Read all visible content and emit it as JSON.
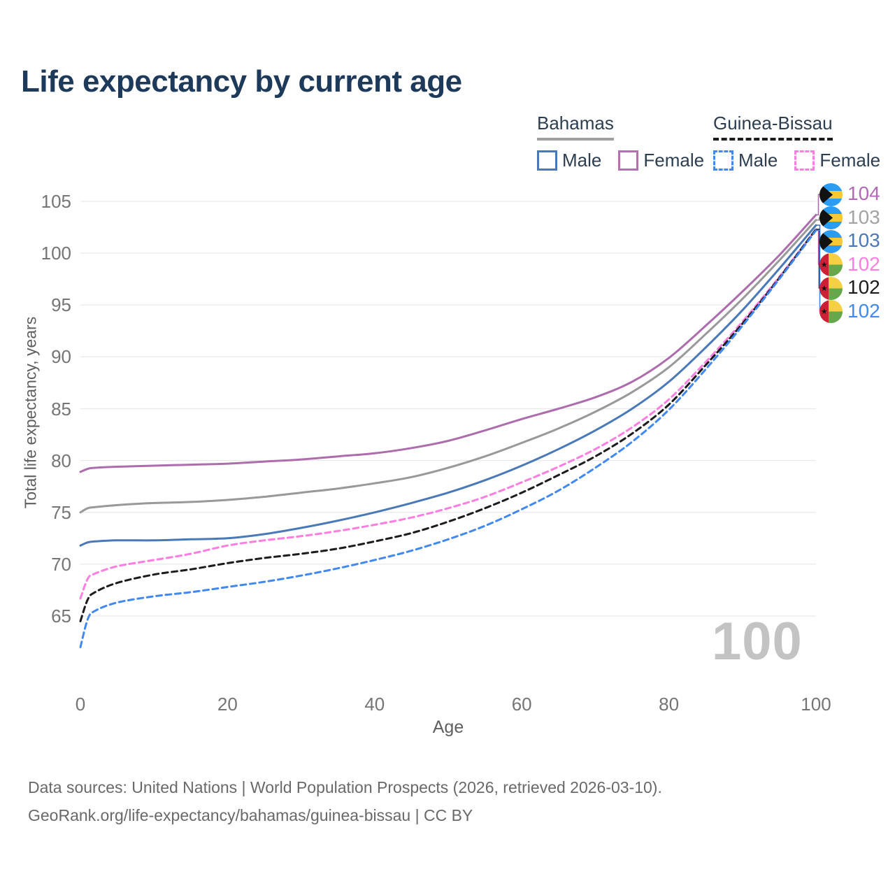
{
  "title": "Life expectancy by current age",
  "watermark": "100",
  "legend": {
    "groups": [
      {
        "country": "Bahamas",
        "underline_style": "solid",
        "underline_color": "#a0a0a0",
        "items": [
          {
            "label": "Male",
            "color": "#4a79b8",
            "dashed": false
          },
          {
            "label": "Female",
            "color": "#b272b2",
            "dashed": false
          }
        ]
      },
      {
        "country": "Guinea-Bissau",
        "underline_style": "dashed",
        "underline_color": "#1c1c1c",
        "items": [
          {
            "label": "Male",
            "color": "#4189f0",
            "dashed": true
          },
          {
            "label": "Female",
            "color": "#fc7ee0",
            "dashed": true
          }
        ]
      }
    ]
  },
  "y_axis": {
    "title": "Total life expectancy, years",
    "ticks": [
      105,
      100,
      95,
      90,
      85,
      80,
      75,
      70,
      65
    ]
  },
  "x_axis": {
    "title": "Age",
    "ticks": [
      0,
      20,
      40,
      60,
      80,
      100
    ]
  },
  "end_labels": [
    {
      "value": "104",
      "color": "#b16ab6",
      "flag": "bahamas"
    },
    {
      "value": "103",
      "color": "#a3a3a3",
      "flag": "bahamas"
    },
    {
      "value": "103",
      "color": "#4a79b8",
      "flag": "bahamas"
    },
    {
      "value": "102",
      "color": "#fc7ee0",
      "flag": "guinea-bissau"
    },
    {
      "value": "102",
      "color": "#1c1c1c",
      "flag": "guinea-bissau"
    },
    {
      "value": "102",
      "color": "#4189f0",
      "flag": "guinea-bissau"
    }
  ],
  "footer": {
    "line1": "Data sources: United Nations | World Population Prospects (2026, retrieved 2026-03-10).",
    "line2": "GeoRank.org/life-expectancy/bahamas/guinea-bissau | CC BY"
  },
  "chart_data": {
    "type": "line",
    "title": "Life expectancy by current age",
    "xlabel": "Age",
    "ylabel": "Total life expectancy, years",
    "xlim": [
      0,
      100
    ],
    "ylim": [
      61,
      106
    ],
    "grid": "horizontal",
    "legend_position": "top-right",
    "x": [
      0,
      1,
      2,
      5,
      10,
      15,
      20,
      25,
      30,
      35,
      40,
      45,
      50,
      55,
      60,
      65,
      70,
      75,
      80,
      85,
      90,
      95,
      100
    ],
    "series": [
      {
        "name": "Bahamas Female",
        "color": "#ad6dad",
        "dashed": false,
        "values": [
          78.9,
          79.2,
          79.3,
          79.4,
          79.5,
          79.6,
          79.7,
          79.9,
          80.1,
          80.4,
          80.7,
          81.2,
          81.9,
          82.9,
          84.0,
          85.0,
          86.1,
          87.6,
          89.9,
          93.0,
          96.3,
          99.8,
          103.7
        ]
      },
      {
        "name": "Bahamas Both sexes",
        "color": "#999999",
        "dashed": false,
        "values": [
          75.0,
          75.4,
          75.5,
          75.7,
          75.9,
          76.0,
          76.2,
          76.5,
          76.9,
          77.3,
          77.8,
          78.4,
          79.3,
          80.4,
          81.7,
          83.1,
          84.7,
          86.6,
          89.0,
          92.2,
          95.6,
          99.3,
          103.2
        ]
      },
      {
        "name": "Bahamas Male",
        "color": "#4a79b8",
        "dashed": false,
        "values": [
          71.8,
          72.1,
          72.2,
          72.3,
          72.3,
          72.4,
          72.5,
          72.9,
          73.5,
          74.2,
          75.0,
          75.9,
          76.9,
          78.1,
          79.5,
          81.1,
          82.9,
          85.0,
          87.6,
          90.9,
          94.5,
          98.5,
          102.7
        ]
      },
      {
        "name": "Guinea-Bissau Female",
        "color": "#fc7ee0",
        "dashed": true,
        "values": [
          66.7,
          68.6,
          69.1,
          69.8,
          70.4,
          71.0,
          71.8,
          72.3,
          72.7,
          73.2,
          73.8,
          74.5,
          75.4,
          76.5,
          77.9,
          79.4,
          81.1,
          83.2,
          85.9,
          89.5,
          93.4,
          97.7,
          102.3
        ]
      },
      {
        "name": "Guinea-Bissau Both sexes",
        "color": "#1c1c1c",
        "dashed": true,
        "values": [
          64.5,
          66.6,
          67.3,
          68.2,
          69.0,
          69.5,
          70.1,
          70.6,
          71.0,
          71.5,
          72.2,
          73.0,
          74.1,
          75.4,
          76.9,
          78.6,
          80.4,
          82.6,
          85.4,
          89.2,
          93.2,
          97.6,
          102.3
        ]
      },
      {
        "name": "Guinea-Bissau Male",
        "color": "#4189f0",
        "dashed": true,
        "values": [
          62.0,
          64.7,
          65.5,
          66.3,
          66.9,
          67.3,
          67.8,
          68.3,
          68.9,
          69.6,
          70.4,
          71.3,
          72.4,
          73.7,
          75.3,
          77.1,
          79.3,
          81.8,
          84.9,
          88.8,
          93.0,
          97.5,
          102.2
        ]
      }
    ]
  }
}
